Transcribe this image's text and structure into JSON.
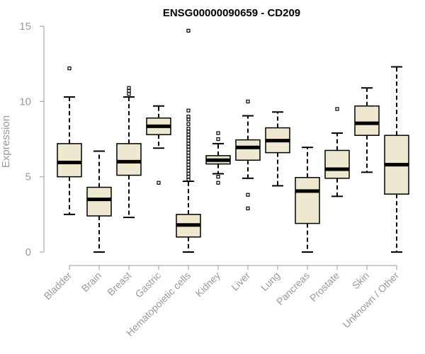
{
  "chart_data": {
    "type": "boxplot",
    "title": "ENSG00000090659 - CD209",
    "xlabel": "",
    "ylabel": "Expression",
    "ylim": [
      0,
      15
    ],
    "yticks": [
      0,
      5,
      10,
      15
    ],
    "box_fill": "#efe8d0",
    "box_stroke": "#000000",
    "axis_color": "#999999",
    "categories": [
      "Bladder",
      "Brain",
      "Breast",
      "Gastric",
      "Hematopoietic cells",
      "Kidney",
      "Liver",
      "Lung",
      "Pancreas",
      "Prostate",
      "Skin",
      "Unknown / Other"
    ],
    "series": [
      {
        "name": "Bladder",
        "min": 2.5,
        "q1": 5.0,
        "median": 5.95,
        "q3": 7.2,
        "max": 10.3,
        "outliers": [
          12.2
        ]
      },
      {
        "name": "Brain",
        "min": 0.0,
        "q1": 2.4,
        "median": 3.5,
        "q3": 4.3,
        "max": 6.7,
        "outliers": []
      },
      {
        "name": "Breast",
        "min": 2.3,
        "q1": 5.1,
        "median": 6.0,
        "q3": 7.2,
        "max": 10.3,
        "outliers": [
          10.5,
          10.7,
          10.9
        ]
      },
      {
        "name": "Gastric",
        "min": 6.9,
        "q1": 7.8,
        "median": 8.35,
        "q3": 8.9,
        "max": 9.7,
        "outliers": [
          4.6
        ]
      },
      {
        "name": "Hematopoietic cells",
        "min": 0.0,
        "q1": 1.0,
        "median": 1.8,
        "q3": 2.5,
        "max": 4.7,
        "outliers": [
          4.8,
          5.0,
          5.2,
          5.4,
          5.6,
          5.8,
          6.0,
          6.2,
          6.4,
          6.6,
          6.8,
          7.0,
          7.2,
          7.4,
          7.6,
          7.8,
          8.0,
          8.2,
          8.5,
          8.8,
          9.0,
          9.4,
          14.7
        ]
      },
      {
        "name": "Kidney",
        "min": 5.2,
        "q1": 5.85,
        "median": 6.1,
        "q3": 6.4,
        "max": 7.2,
        "outliers": [
          4.6,
          5.0,
          7.5,
          7.9
        ]
      },
      {
        "name": "Liver",
        "min": 4.9,
        "q1": 6.1,
        "median": 6.95,
        "q3": 7.45,
        "max": 9.05,
        "outliers": [
          2.9,
          3.8,
          10.0
        ]
      },
      {
        "name": "Lung",
        "min": 4.4,
        "q1": 6.6,
        "median": 7.4,
        "q3": 8.25,
        "max": 9.3,
        "outliers": []
      },
      {
        "name": "Pancreas",
        "min": 0.0,
        "q1": 1.9,
        "median": 4.05,
        "q3": 4.95,
        "max": 6.95,
        "outliers": []
      },
      {
        "name": "Prostate",
        "min": 3.7,
        "q1": 4.9,
        "median": 5.5,
        "q3": 6.75,
        "max": 7.9,
        "outliers": [
          9.5
        ]
      },
      {
        "name": "Skin",
        "min": 5.3,
        "q1": 7.75,
        "median": 8.55,
        "q3": 9.7,
        "max": 10.9,
        "outliers": []
      },
      {
        "name": "Unknown / Other",
        "min": 0.0,
        "q1": 3.85,
        "median": 5.8,
        "q3": 7.75,
        "max": 12.3,
        "outliers": []
      }
    ]
  }
}
